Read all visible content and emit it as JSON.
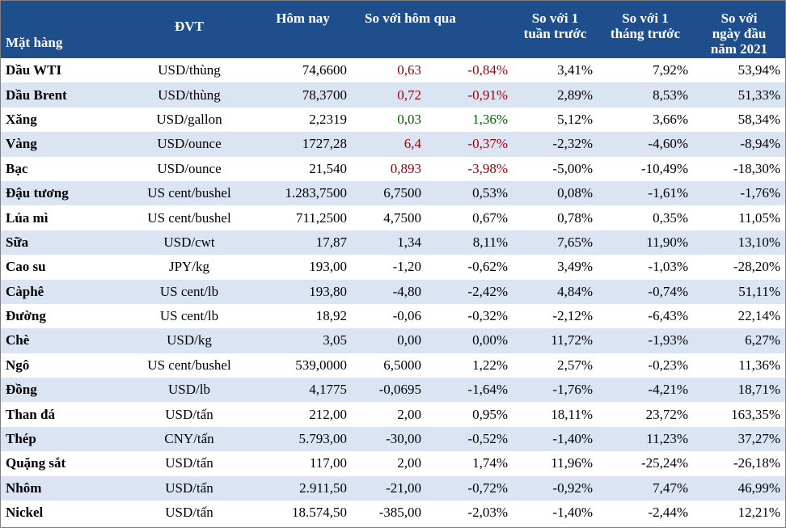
{
  "header": {
    "item": "Mặt hàng",
    "unit": "ĐVT",
    "today": "Hôm nay",
    "vs_yesterday": "So với hôm qua",
    "vs_week_l1": "So với 1",
    "vs_week_l2": "tuần trước",
    "vs_month_l1": "So với 1",
    "vs_month_l2": "tháng trước",
    "vs_year_l1": "So với",
    "vs_year_l2": "ngày đầu",
    "vs_year_l3": "năm 2021"
  },
  "colors": {
    "header_bg": "#1f4e8c",
    "stripe": "#dbe4f3",
    "negative": "#9c0006",
    "positive": "#006100"
  },
  "rows": [
    {
      "name": "Dầu WTI",
      "unit": "USD/thùng",
      "today": "74,6600",
      "chg": "0,63",
      "pct": "-0,84%",
      "week": "3,41%",
      "month": "7,92%",
      "ytd": "53,94%",
      "tone": "neg"
    },
    {
      "name": "Dầu Brent",
      "unit": "USD/thùng",
      "today": "78,3700",
      "chg": "0,72",
      "pct": "-0,91%",
      "week": "2,89%",
      "month": "8,53%",
      "ytd": "51,33%",
      "tone": "neg"
    },
    {
      "name": "Xăng",
      "unit": "USD/gallon",
      "today": "2,2319",
      "chg": "0,03",
      "pct": "1,36%",
      "week": "5,12%",
      "month": "3,66%",
      "ytd": "58,34%",
      "tone": "pos"
    },
    {
      "name": "Vàng",
      "unit": "USD/ounce",
      "today": "1727,28",
      "chg": "6,4",
      "pct": "-0,37%",
      "week": "-2,32%",
      "month": "-4,60%",
      "ytd": "-8,94%",
      "tone": "neg"
    },
    {
      "name": "Bạc",
      "unit": "USD/ounce",
      "today": "21,540",
      "chg": "0,893",
      "pct": "-3,98%",
      "week": "-5,00%",
      "month": "-10,49%",
      "ytd": "-18,30%",
      "tone": "neg"
    },
    {
      "name": "Đậu tương",
      "unit": "US cent/bushel",
      "today": "1.283,7500",
      "chg": "6,7500",
      "pct": "0,53%",
      "week": "0,08%",
      "month": "-1,61%",
      "ytd": "-1,76%",
      "tone": ""
    },
    {
      "name": "Lúa mì",
      "unit": "US cent/bushel",
      "today": "711,2500",
      "chg": "4,7500",
      "pct": "0,67%",
      "week": "0,78%",
      "month": "0,35%",
      "ytd": "11,05%",
      "tone": ""
    },
    {
      "name": "Sữa",
      "unit": "USD/cwt",
      "today": "17,87",
      "chg": "1,34",
      "pct": "8,11%",
      "week": "7,65%",
      "month": "11,90%",
      "ytd": "13,10%",
      "tone": ""
    },
    {
      "name": "Cao su",
      "unit": "JPY/kg",
      "today": "193,00",
      "chg": "-1,20",
      "pct": "-0,62%",
      "week": "3,49%",
      "month": "-1,03%",
      "ytd": "-28,20%",
      "tone": ""
    },
    {
      "name": "Càphê",
      "unit": "US cent/lb",
      "today": "193,80",
      "chg": "-4,80",
      "pct": "-2,42%",
      "week": "4,84%",
      "month": "-0,74%",
      "ytd": "51,11%",
      "tone": ""
    },
    {
      "name": "Đường",
      "unit": "US cent/lb",
      "today": "18,92",
      "chg": "-0,06",
      "pct": "-0,32%",
      "week": "-2,12%",
      "month": "-6,43%",
      "ytd": "22,14%",
      "tone": ""
    },
    {
      "name": "Chè",
      "unit": "USD/kg",
      "today": "3,05",
      "chg": "0,00",
      "pct": "0,00%",
      "week": "11,72%",
      "month": "-1,93%",
      "ytd": "6,27%",
      "tone": ""
    },
    {
      "name": "Ngô",
      "unit": "US cent/bushel",
      "today": "539,0000",
      "chg": "6,5000",
      "pct": "1,22%",
      "week": "2,57%",
      "month": "-0,23%",
      "ytd": "11,36%",
      "tone": ""
    },
    {
      "name": "Đồng",
      "unit": "USD/lb",
      "today": "4,1775",
      "chg": "-0,0695",
      "pct": "-1,64%",
      "week": "-1,76%",
      "month": "-4,21%",
      "ytd": "18,71%",
      "tone": ""
    },
    {
      "name": "Than đá",
      "unit": "USD/tấn",
      "today": "212,00",
      "chg": "2,00",
      "pct": "0,95%",
      "week": "18,11%",
      "month": "23,72%",
      "ytd": "163,35%",
      "tone": ""
    },
    {
      "name": "Thép",
      "unit": "CNY/tấn",
      "today": "5.793,00",
      "chg": "-30,00",
      "pct": "-0,52%",
      "week": "-1,40%",
      "month": "11,23%",
      "ytd": "37,27%",
      "tone": ""
    },
    {
      "name": "Quặng sắt",
      "unit": "USD/tấn",
      "today": "117,00",
      "chg": "2,00",
      "pct": "1,74%",
      "week": "11,96%",
      "month": "-25,24%",
      "ytd": "-26,18%",
      "tone": ""
    },
    {
      "name": "Nhôm",
      "unit": "USD/tấn",
      "today": "2.911,50",
      "chg": "-21,00",
      "pct": "-0,72%",
      "week": "-0,92%",
      "month": "7,47%",
      "ytd": "46,99%",
      "tone": ""
    },
    {
      "name": "Nickel",
      "unit": "USD/tấn",
      "today": "18.574,50",
      "chg": "-385,00",
      "pct": "-2,03%",
      "week": "-1,40%",
      "month": "-2,44%",
      "ytd": "12,21%",
      "tone": ""
    }
  ]
}
